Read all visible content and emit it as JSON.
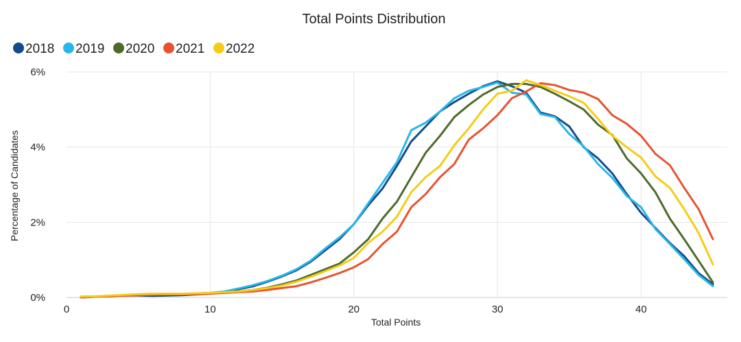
{
  "chart_data": {
    "type": "line",
    "title": "Total Points Distribution",
    "xlabel": "Total Points",
    "ylabel": "Percentage of Candidates",
    "xlim": [
      0,
      46
    ],
    "ylim": [
      0,
      6
    ],
    "x_ticks": [
      0,
      10,
      20,
      30,
      40
    ],
    "y_ticks": [
      0,
      2,
      4,
      6
    ],
    "y_tick_labels": [
      "0%",
      "2%",
      "4%",
      "6%"
    ],
    "grid": "vertical-and-horizontal",
    "legend_position": "top-left",
    "x": [
      1,
      2,
      3,
      4,
      5,
      6,
      7,
      8,
      9,
      10,
      11,
      12,
      13,
      14,
      15,
      16,
      17,
      18,
      19,
      20,
      21,
      22,
      23,
      24,
      25,
      26,
      27,
      28,
      29,
      30,
      31,
      32,
      33,
      34,
      35,
      36,
      37,
      38,
      39,
      40,
      41,
      42,
      43,
      44,
      45
    ],
    "series": [
      {
        "name": "2018",
        "color": "#124b8c",
        "values": [
          0.0,
          0.02,
          0.04,
          0.05,
          0.05,
          0.04,
          0.05,
          0.06,
          0.08,
          0.1,
          0.14,
          0.22,
          0.3,
          0.42,
          0.56,
          0.72,
          0.95,
          1.25,
          1.55,
          1.95,
          2.45,
          2.9,
          3.5,
          4.15,
          4.55,
          4.95,
          5.2,
          5.42,
          5.62,
          5.75,
          5.62,
          5.45,
          4.92,
          4.82,
          4.55,
          4.0,
          3.7,
          3.3,
          2.75,
          2.25,
          1.85,
          1.45,
          1.1,
          0.65,
          0.35
        ]
      },
      {
        "name": "2019",
        "color": "#29b6e8",
        "values": [
          0.02,
          0.03,
          0.04,
          0.05,
          0.06,
          0.07,
          0.08,
          0.08,
          0.1,
          0.12,
          0.16,
          0.24,
          0.33,
          0.44,
          0.58,
          0.75,
          0.98,
          1.3,
          1.6,
          1.95,
          2.5,
          3.05,
          3.6,
          4.45,
          4.65,
          4.95,
          5.3,
          5.5,
          5.6,
          5.72,
          5.45,
          5.4,
          4.88,
          4.8,
          4.35,
          4.02,
          3.55,
          3.18,
          2.7,
          2.4,
          1.82,
          1.42,
          1.02,
          0.6,
          0.3
        ]
      },
      {
        "name": "2020",
        "color": "#4d6a2a",
        "values": [
          0.0,
          0.02,
          0.04,
          0.05,
          0.06,
          0.07,
          0.07,
          0.08,
          0.1,
          0.12,
          0.14,
          0.16,
          0.2,
          0.26,
          0.35,
          0.45,
          0.6,
          0.75,
          0.9,
          1.2,
          1.55,
          2.1,
          2.55,
          3.2,
          3.85,
          4.3,
          4.8,
          5.12,
          5.4,
          5.6,
          5.68,
          5.68,
          5.6,
          5.42,
          5.22,
          5.0,
          4.6,
          4.32,
          3.7,
          3.3,
          2.8,
          2.1,
          1.55,
          0.98,
          0.4
        ]
      },
      {
        "name": "2021",
        "color": "#e8522e",
        "values": [
          0.0,
          0.02,
          0.03,
          0.05,
          0.06,
          0.07,
          0.08,
          0.08,
          0.09,
          0.1,
          0.12,
          0.14,
          0.16,
          0.2,
          0.25,
          0.3,
          0.4,
          0.52,
          0.65,
          0.8,
          1.02,
          1.42,
          1.75,
          2.4,
          2.75,
          3.2,
          3.55,
          4.2,
          4.5,
          4.85,
          5.3,
          5.48,
          5.7,
          5.65,
          5.52,
          5.45,
          5.28,
          4.85,
          4.62,
          4.3,
          3.82,
          3.52,
          2.92,
          2.35,
          1.55
        ]
      },
      {
        "name": "2022",
        "color": "#f7cb14",
        "values": [
          0.02,
          0.03,
          0.05,
          0.07,
          0.09,
          0.1,
          0.1,
          0.1,
          0.11,
          0.12,
          0.14,
          0.16,
          0.2,
          0.25,
          0.32,
          0.42,
          0.55,
          0.7,
          0.85,
          1.05,
          1.45,
          1.75,
          2.15,
          2.8,
          3.2,
          3.5,
          4.05,
          4.5,
          5.0,
          5.42,
          5.5,
          5.78,
          5.65,
          5.5,
          5.35,
          5.18,
          4.75,
          4.3,
          4.0,
          3.72,
          3.22,
          2.92,
          2.35,
          1.72,
          0.88
        ]
      }
    ]
  }
}
